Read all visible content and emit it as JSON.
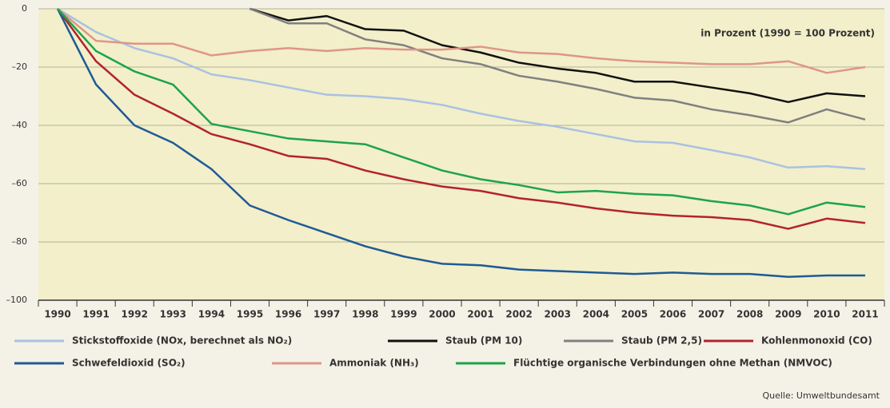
{
  "chart_data": {
    "type": "line",
    "annotation": "in Prozent (1990 = 100 Prozent)",
    "source": "Quelle: Umweltbundesamt",
    "categories": [
      "1990",
      "1991",
      "1992",
      "1993",
      "1994",
      "1995",
      "1996",
      "1997",
      "1998",
      "1999",
      "2000",
      "2001",
      "2002",
      "2003",
      "2004",
      "2005",
      "2006",
      "2007",
      "2008",
      "2009",
      "2010",
      "2011"
    ],
    "ylim": [
      -100,
      0
    ],
    "yticks": [
      {
        "value": -100,
        "label": "–100"
      },
      {
        "value": -80,
        "label": "–80"
      },
      {
        "value": -60,
        "label": "–60"
      },
      {
        "value": -40,
        "label": "–40"
      },
      {
        "value": -20,
        "label": "–20"
      },
      0
    ],
    "grid": true,
    "series": [
      {
        "name": "Stickstoffoxide (NOx, berechnet als NO₂)",
        "color": "#a9c1e2",
        "values": [
          0,
          -8,
          -13.5,
          -17,
          -22.5,
          -24.5,
          -27,
          -29.5,
          -30,
          -31,
          -33,
          -36,
          -38.5,
          -40.5,
          -43,
          -45.5,
          -46,
          -48.5,
          -51,
          -54.5,
          -54,
          -55
        ]
      },
      {
        "name": "Staub (PM 10)",
        "color": "#111111",
        "values": [
          null,
          null,
          null,
          null,
          null,
          0,
          -4,
          -2.5,
          -7,
          -7.5,
          -12.5,
          -15,
          -18.5,
          -20.5,
          -22,
          -25,
          -25,
          -27,
          -29,
          -32,
          -29,
          -30
        ]
      },
      {
        "name": "Staub (PM 2,5)",
        "color": "#808080",
        "values": [
          null,
          null,
          null,
          null,
          null,
          0,
          -5,
          -5,
          -10.5,
          -12.5,
          -17,
          -19,
          -23,
          -25,
          -27.5,
          -30.5,
          -31.5,
          -34.5,
          -36.5,
          -39,
          -34.5,
          -38
        ]
      },
      {
        "name": "Kohlenmonoxid (CO)",
        "color": "#b3222f",
        "values": [
          0,
          -18,
          -29.5,
          -36,
          -43,
          -46.5,
          -50.5,
          -51.5,
          -55.5,
          -58.5,
          -61,
          -62.5,
          -65,
          -66.5,
          -68.5,
          -70,
          -71,
          -71.5,
          -72.5,
          -75.5,
          -72,
          -73.5
        ]
      },
      {
        "name": "Schwefeldioxid (SO₂)",
        "color": "#1f5a96",
        "values": [
          0,
          -26,
          -40,
          -46,
          -55,
          -67.5,
          -72.5,
          -77,
          -81.5,
          -85,
          -87.5,
          -88,
          -89.5,
          -90,
          -90.5,
          -91,
          -90.5,
          -91,
          -91,
          -92,
          -91.5,
          -91.5
        ]
      },
      {
        "name": "Ammoniak (NH₃)",
        "color": "#e0958a",
        "values": [
          0,
          -11,
          -12,
          -12,
          -16,
          -14.5,
          -13.5,
          -14.5,
          -13.5,
          -14,
          -14,
          -13,
          -15,
          -15.5,
          -17,
          -18,
          -18.5,
          -19,
          -19,
          -18,
          -22,
          -20
        ]
      },
      {
        "name": "Flüchtige organische Verbindungen ohne Methan (NMVOC)",
        "color": "#1ea34a",
        "values": [
          0,
          -14.5,
          -21.5,
          -26,
          -39.5,
          -42,
          -44.5,
          -45.5,
          -46.5,
          -51,
          -55.5,
          -58.5,
          -60.5,
          -63,
          -62.5,
          -63.5,
          -64,
          -66,
          -67.5,
          -70.5,
          -66.5,
          -68
        ]
      }
    ]
  }
}
